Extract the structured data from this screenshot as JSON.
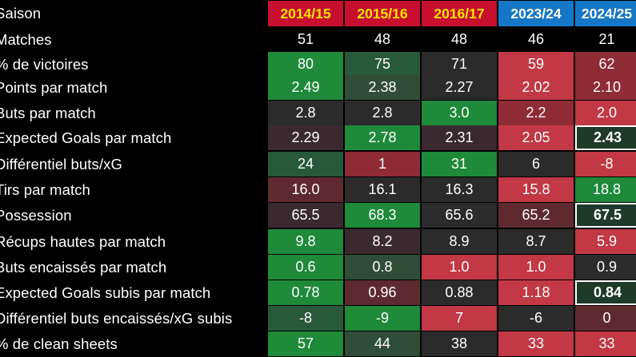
{
  "chart_data": {
    "type": "table",
    "corner_label": "Saison",
    "columns": [
      {
        "label": "2014/15",
        "color": "#c8102e"
      },
      {
        "label": "2015/16",
        "color": "#c8102e"
      },
      {
        "label": "2016/17",
        "color": "#c8102e"
      },
      {
        "label": "2023/24",
        "color": "#1677c7"
      },
      {
        "label": "2024/25",
        "color": "#1677c7"
      }
    ],
    "rows": [
      {
        "label": "Matches",
        "values": [
          "51",
          "48",
          "48",
          "46",
          "21"
        ],
        "colors": [
          "#000000",
          "#000000",
          "#000000",
          "#000000",
          "#000000"
        ],
        "highlight": [
          false,
          false,
          false,
          false,
          false
        ]
      },
      {
        "label": "% de victoires",
        "values": [
          "80",
          "75",
          "71",
          "59",
          "62"
        ],
        "colors": [
          "#1f8a3a",
          "#28593a",
          "#2b2b2b",
          "#c23845",
          "#8e2b35"
        ],
        "highlight": [
          false,
          false,
          false,
          false,
          false
        ]
      },
      {
        "label": "Points par match",
        "values": [
          "2.49",
          "2.38",
          "2.27",
          "2.02",
          "2.10"
        ],
        "colors": [
          "#1f8a3a",
          "#2f4d37",
          "#2b2b2b",
          "#c23845",
          "#8e2b35"
        ],
        "highlight": [
          false,
          false,
          false,
          false,
          false
        ]
      },
      {
        "label": "Buts par match",
        "values": [
          "2.8",
          "2.8",
          "3.0",
          "2.2",
          "2.0"
        ],
        "colors": [
          "#2b2b2b",
          "#2b2b2b",
          "#1f8a3a",
          "#8e2b35",
          "#c23845"
        ],
        "highlight": [
          false,
          false,
          false,
          false,
          false
        ]
      },
      {
        "label": "Expected Goals par match",
        "values": [
          "2.29",
          "2.78",
          "2.31",
          "2.05",
          "2.43"
        ],
        "colors": [
          "#3a2a2f",
          "#1f8a3a",
          "#3a2a2f",
          "#c23845",
          "#1e3a28"
        ],
        "highlight": [
          false,
          false,
          false,
          false,
          true
        ]
      },
      {
        "label": "Différentiel buts/xG",
        "values": [
          "24",
          "1",
          "31",
          "6",
          "-8"
        ],
        "colors": [
          "#28593a",
          "#8e2b35",
          "#1f8a3a",
          "#2b2b2b",
          "#c23845"
        ],
        "highlight": [
          false,
          false,
          false,
          false,
          false
        ]
      },
      {
        "label": "Tirs par match",
        "values": [
          "16.0",
          "16.1",
          "16.3",
          "15.8",
          "18.8"
        ],
        "colors": [
          "#5e2a30",
          "#2b2b2b",
          "#2b2b2b",
          "#c23845",
          "#1f8a3a"
        ],
        "highlight": [
          false,
          false,
          false,
          false,
          false
        ]
      },
      {
        "label": "Possession",
        "values": [
          "65.5",
          "68.3",
          "65.6",
          "65.2",
          "67.5"
        ],
        "colors": [
          "#3a2a2f",
          "#1f8a3a",
          "#2b2b2b",
          "#5e2a30",
          "#1e3a28"
        ],
        "highlight": [
          false,
          false,
          false,
          false,
          true
        ]
      },
      {
        "label": "Récups hautes par match",
        "values": [
          "9.8",
          "8.2",
          "8.9",
          "8.7",
          "5.9"
        ],
        "colors": [
          "#1f8a3a",
          "#3a2a2f",
          "#2b2b2b",
          "#2b2b2b",
          "#c23845"
        ],
        "highlight": [
          false,
          false,
          false,
          false,
          false
        ]
      },
      {
        "label": "Buts encaissés par match",
        "values": [
          "0.6",
          "0.8",
          "1.0",
          "1.0",
          "0.9"
        ],
        "colors": [
          "#1f8a3a",
          "#2f4d37",
          "#c23845",
          "#c23845",
          "#2b2b2b"
        ],
        "highlight": [
          false,
          false,
          false,
          false,
          false
        ]
      },
      {
        "label": "Expected Goals subis par match",
        "values": [
          "0.78",
          "0.96",
          "0.88",
          "1.18",
          "0.84"
        ],
        "colors": [
          "#1f8a3a",
          "#5e2a30",
          "#2b2b2b",
          "#c23845",
          "#1e3a28"
        ],
        "highlight": [
          false,
          false,
          false,
          false,
          true
        ]
      },
      {
        "label": "Différentiel buts encaissés/xG subis",
        "values": [
          "-8",
          "-9",
          "7",
          "-6",
          "0"
        ],
        "colors": [
          "#28593a",
          "#1f8a3a",
          "#c23845",
          "#2b2b2b",
          "#5e2a30"
        ],
        "highlight": [
          false,
          false,
          false,
          false,
          false
        ]
      },
      {
        "label": "% de clean sheets",
        "values": [
          "57",
          "44",
          "38",
          "33",
          "33"
        ],
        "colors": [
          "#1f8a3a",
          "#2f4d37",
          "#2b2b2b",
          "#c23845",
          "#c23845"
        ],
        "highlight": [
          false,
          false,
          false,
          false,
          false
        ]
      }
    ]
  }
}
